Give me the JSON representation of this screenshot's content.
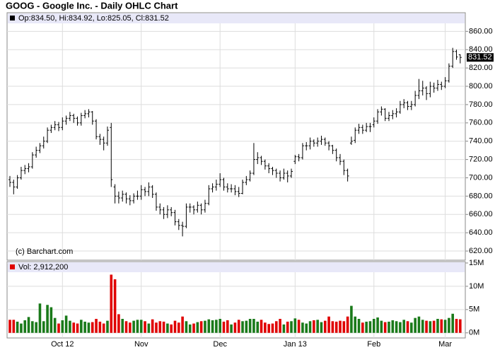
{
  "chart_data": {
    "type": "ohlc",
    "title": "GOOG - Google Inc. - Daily OHLC Chart",
    "price_legend": "Op:834.50, Hi:834.92, Lo:825.05, Cl:831.52",
    "volume_legend": "Vol: 2,912,200",
    "credit": "(c) Barchart.com",
    "categories": [
      null,
      null,
      null,
      null,
      null,
      null,
      null,
      null,
      null,
      null,
      null,
      null,
      null,
      null,
      "Oct 12",
      null,
      null,
      null,
      null,
      null,
      null,
      null,
      null,
      null,
      null,
      null,
      null,
      null,
      null,
      null,
      null,
      null,
      null,
      null,
      null,
      "Nov",
      null,
      null,
      null,
      null,
      null,
      null,
      null,
      null,
      null,
      null,
      null,
      null,
      null,
      null,
      null,
      null,
      null,
      null,
      null,
      null,
      "Dec",
      null,
      null,
      null,
      null,
      null,
      null,
      null,
      null,
      null,
      null,
      null,
      null,
      null,
      null,
      null,
      null,
      null,
      null,
      null,
      "Jan 13",
      null,
      null,
      null,
      null,
      null,
      null,
      null,
      null,
      null,
      null,
      null,
      null,
      null,
      null,
      null,
      null,
      null,
      null,
      null,
      null,
      "Feb",
      null,
      null,
      null,
      null,
      null,
      null,
      null,
      null,
      null,
      null,
      null,
      null,
      null,
      null,
      null,
      null,
      null,
      null,
      "Mar",
      null,
      null,
      null,
      null
    ],
    "open": [
      698,
      695,
      690,
      700,
      708,
      710,
      712,
      725,
      730,
      735,
      740,
      752,
      755,
      758,
      755,
      762,
      765,
      768,
      765,
      760,
      768,
      770,
      772,
      762,
      745,
      742,
      738,
      755,
      690,
      680,
      678,
      682,
      677,
      675,
      680,
      680,
      687,
      685,
      690,
      682,
      668,
      665,
      660,
      665,
      662,
      652,
      648,
      647,
      668,
      668,
      665,
      670,
      665,
      672,
      688,
      690,
      693,
      698,
      690,
      688,
      688,
      685,
      683,
      695,
      698,
      705,
      720,
      722,
      718,
      713,
      710,
      708,
      705,
      700,
      705,
      702,
      718,
      723,
      722,
      735,
      735,
      740,
      738,
      740,
      742,
      738,
      735,
      730,
      722,
      718,
      708,
      738,
      741,
      752,
      755,
      752,
      756,
      758,
      762,
      772,
      775,
      765,
      768,
      770,
      772,
      780,
      782,
      778,
      780,
      790,
      795,
      798,
      792,
      800,
      798,
      802,
      800,
      806,
      822,
      838,
      834.5
    ],
    "high": [
      702,
      698,
      703,
      712,
      714,
      716,
      728,
      734,
      738,
      745,
      755,
      758,
      762,
      761,
      766,
      768,
      772,
      770,
      767,
      771,
      774,
      775,
      773,
      764,
      748,
      745,
      756,
      760,
      693,
      685,
      686,
      684,
      681,
      683,
      686,
      692,
      690,
      695,
      692,
      684,
      672,
      668,
      670,
      668,
      665,
      655,
      652,
      672,
      672,
      670,
      674,
      672,
      676,
      692,
      694,
      698,
      705,
      700,
      694,
      693,
      692,
      690,
      698,
      702,
      708,
      738,
      728,
      724,
      720,
      716,
      712,
      710,
      708,
      710,
      708,
      710,
      725,
      726,
      738,
      739,
      744,
      742,
      744,
      746,
      744,
      740,
      736,
      732,
      726,
      720,
      710,
      745,
      755,
      759,
      758,
      760,
      760,
      766,
      775,
      778,
      776,
      772,
      774,
      776,
      784,
      786,
      784,
      784,
      795,
      808,
      806,
      800,
      805,
      804,
      807,
      805,
      810,
      825,
      842,
      840,
      834.92
    ],
    "low": [
      690,
      682,
      688,
      698,
      704,
      706,
      710,
      722,
      727,
      732,
      738,
      749,
      752,
      751,
      752,
      758,
      762,
      760,
      757,
      757,
      765,
      766,
      758,
      742,
      736,
      730,
      735,
      690,
      672,
      672,
      674,
      672,
      670,
      672,
      676,
      676,
      680,
      680,
      678,
      664,
      660,
      655,
      656,
      658,
      648,
      643,
      636,
      645,
      662,
      660,
      662,
      660,
      662,
      670,
      684,
      686,
      690,
      686,
      684,
      684,
      681,
      679,
      682,
      692,
      696,
      703,
      715,
      714,
      709,
      705,
      703,
      700,
      696,
      698,
      695,
      700,
      715,
      718,
      720,
      730,
      731,
      734,
      734,
      736,
      735,
      730,
      726,
      718,
      714,
      703,
      696,
      736,
      738,
      748,
      748,
      750,
      750,
      755,
      759,
      768,
      762,
      762,
      764,
      766,
      770,
      776,
      774,
      774,
      778,
      786,
      790,
      785,
      788,
      793,
      795,
      796,
      798,
      804,
      820,
      829,
      825.05
    ],
    "close": [
      695,
      690,
      700,
      708,
      710,
      712,
      725,
      730,
      735,
      740,
      752,
      755,
      758,
      755,
      762,
      765,
      768,
      765,
      760,
      768,
      770,
      772,
      762,
      745,
      742,
      738,
      752,
      698,
      680,
      678,
      682,
      677,
      675,
      680,
      680,
      687,
      685,
      690,
      682,
      668,
      665,
      660,
      665,
      662,
      652,
      648,
      647,
      668,
      668,
      665,
      670,
      665,
      672,
      688,
      690,
      693,
      698,
      690,
      688,
      688,
      685,
      683,
      695,
      698,
      705,
      720,
      722,
      718,
      713,
      710,
      708,
      705,
      700,
      705,
      702,
      707,
      723,
      722,
      735,
      735,
      740,
      738,
      740,
      742,
      738,
      735,
      730,
      722,
      718,
      708,
      702,
      740,
      752,
      755,
      752,
      756,
      756,
      762,
      772,
      775,
      765,
      768,
      770,
      772,
      780,
      782,
      778,
      780,
      790,
      795,
      798,
      792,
      800,
      798,
      802,
      800,
      806,
      822,
      838,
      832,
      831.52
    ],
    "volume": [
      2.8,
      2.8,
      2.4,
      2.0,
      2.7,
      3.4,
      2.5,
      2.3,
      6.3,
      2.5,
      6.0,
      5.5,
      3.2,
      2.0,
      2.7,
      3.7,
      2.6,
      2.2,
      2.0,
      2.8,
      2.4,
      2.2,
      2.3,
      3.0,
      2.4,
      2.0,
      2.6,
      12.5,
      11.5,
      4.0,
      3.0,
      2.5,
      2.2,
      2.6,
      2.8,
      2.8,
      2.5,
      2.0,
      2.9,
      2.2,
      2.5,
      2.4,
      2.0,
      1.8,
      2.6,
      2.2,
      3.5,
      2.5,
      1.8,
      2.0,
      2.3,
      2.5,
      2.6,
      2.9,
      2.7,
      2.8,
      3.0,
      2.4,
      2.7,
      1.8,
      2.2,
      2.8,
      2.5,
      2.6,
      3.0,
      3.0,
      2.4,
      2.8,
      2.2,
      1.9,
      2.0,
      2.5,
      3.0,
      1.8,
      2.4,
      2.5,
      3.1,
      2.8,
      2.2,
      2.0,
      2.5,
      2.7,
      2.8,
      2.3,
      2.6,
      3.5,
      2.5,
      2.4,
      2.6,
      2.5,
      3.5,
      5.8,
      3.5,
      3.0,
      2.2,
      2.4,
      2.5,
      3.0,
      3.3,
      2.6,
      2.3,
      2.4,
      2.7,
      2.5,
      2.3,
      2.8,
      2.5,
      2.2,
      3.2,
      3.5,
      2.8,
      2.6,
      2.5,
      2.6,
      3.0,
      2.9,
      2.8,
      3.2,
      4.1,
      3.0,
      2.9122
    ],
    "ylim": [
      610,
      868
    ],
    "yticks": [
      {
        "value": 620,
        "label": "620.00"
      },
      {
        "value": 640,
        "label": "640.00"
      },
      {
        "value": 660,
        "label": "660.00"
      },
      {
        "value": 680,
        "label": "680.00"
      },
      {
        "value": 700,
        "label": "700.00"
      },
      {
        "value": 720,
        "label": "720.00"
      },
      {
        "value": 740,
        "label": "740.00"
      },
      {
        "value": 760,
        "label": "760.00"
      },
      {
        "value": 780,
        "label": "780.00"
      },
      {
        "value": 800,
        "label": "800.00"
      },
      {
        "value": 820,
        "label": "820.00"
      },
      {
        "value": 840,
        "label": "840.00"
      },
      {
        "value": 860,
        "label": "860.00"
      }
    ],
    "volume_ylim": [
      -1.1,
      15.3
    ],
    "volume_yticks": [
      {
        "value": 0,
        "label": "0M"
      },
      {
        "value": 5,
        "label": "5M"
      },
      {
        "value": 10,
        "label": "10M"
      },
      {
        "value": 15,
        "label": "15M"
      }
    ],
    "grid": true,
    "color": "#000000",
    "up_color": "#1a7a1a",
    "down_color": "#e00000",
    "header_color": "#e8e8f8"
  }
}
